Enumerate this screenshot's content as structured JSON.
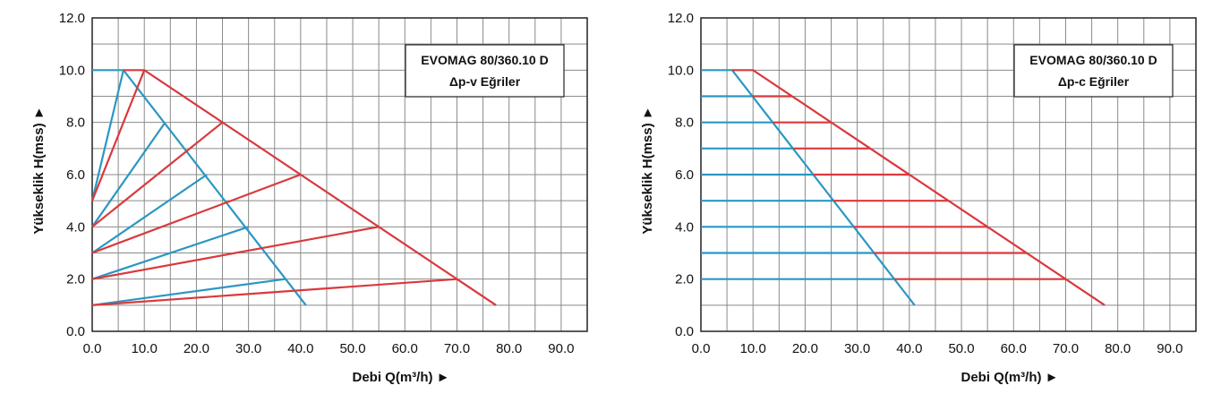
{
  "colors": {
    "blue": "#2a97c2",
    "red": "#d9393c",
    "grid": "#8a8a8a",
    "frame": "#222222"
  },
  "charts": [
    {
      "id": "left",
      "chart_data": {
        "type": "line",
        "title": "EVOMAG 80/360.10 D",
        "subtitle": "Δp-v Eğriler",
        "xlabel": "Debi Q(m³/h) ►",
        "ylabel": "Yükseklik H(mss) ►",
        "xlim": [
          0,
          95
        ],
        "ylim": [
          0,
          12
        ],
        "x_ticks": [
          "0.0",
          "10.0",
          "20.0",
          "30.0",
          "40.0",
          "50.0",
          "60.0",
          "70.0",
          "80.0",
          "90.0"
        ],
        "y_ticks": [
          "0.0",
          "2.0",
          "4.0",
          "6.0",
          "8.0",
          "10.0",
          "12.0"
        ],
        "grid": true,
        "series": [
          {
            "color": "blue",
            "points": [
              [
                0,
                1
              ],
              [
                37,
                2
              ]
            ]
          },
          {
            "color": "blue",
            "points": [
              [
                0,
                2
              ],
              [
                30,
                4
              ]
            ]
          },
          {
            "color": "blue",
            "points": [
              [
                0,
                3
              ],
              [
                22,
                6
              ]
            ]
          },
          {
            "color": "blue",
            "points": [
              [
                0,
                4
              ],
              [
                14,
                8
              ]
            ]
          },
          {
            "color": "blue",
            "points": [
              [
                0,
                5
              ],
              [
                6,
                10
              ]
            ]
          },
          {
            "color": "blue",
            "points": [
              [
                0,
                10
              ],
              [
                6,
                10
              ],
              [
                41,
                1
              ]
            ]
          },
          {
            "color": "red",
            "points": [
              [
                0,
                1
              ],
              [
                70,
                2
              ]
            ]
          },
          {
            "color": "red",
            "points": [
              [
                0,
                2
              ],
              [
                55,
                4
              ]
            ]
          },
          {
            "color": "red",
            "points": [
              [
                0,
                3
              ],
              [
                40,
                6
              ]
            ]
          },
          {
            "color": "red",
            "points": [
              [
                0,
                4
              ],
              [
                25,
                8
              ]
            ]
          },
          {
            "color": "red",
            "points": [
              [
                0,
                5
              ],
              [
                10,
                10
              ]
            ]
          },
          {
            "color": "red",
            "points": [
              [
                6,
                10
              ],
              [
                10,
                10
              ],
              [
                77.5,
                1
              ]
            ]
          }
        ]
      }
    },
    {
      "id": "right",
      "chart_data": {
        "type": "line",
        "title": "EVOMAG 80/360.10 D",
        "subtitle": "Δp-c Eğriler",
        "xlabel": "Debi Q(m³/h) ►",
        "ylabel": "Yükseklik H(mss) ►",
        "xlim": [
          0,
          95
        ],
        "ylim": [
          0,
          12
        ],
        "x_ticks": [
          "0.0",
          "10.0",
          "20.0",
          "30.0",
          "40.0",
          "50.0",
          "60.0",
          "70.0",
          "80.0",
          "90.0"
        ],
        "y_ticks": [
          "0.0",
          "2.0",
          "4.0",
          "6.0",
          "8.0",
          "10.0",
          "12.0"
        ],
        "grid": true,
        "series": [
          {
            "color": "blue",
            "points": [
              [
                0,
                10
              ],
              [
                6,
                10
              ],
              [
                41,
                1
              ]
            ]
          },
          {
            "color": "blue",
            "points": [
              [
                0,
                9
              ],
              [
                9.9,
                9
              ]
            ]
          },
          {
            "color": "blue",
            "points": [
              [
                0,
                8
              ],
              [
                13.8,
                8
              ]
            ]
          },
          {
            "color": "blue",
            "points": [
              [
                0,
                7
              ],
              [
                17.7,
                7
              ]
            ]
          },
          {
            "color": "blue",
            "points": [
              [
                0,
                6
              ],
              [
                21.6,
                6
              ]
            ]
          },
          {
            "color": "blue",
            "points": [
              [
                0,
                5
              ],
              [
                25.4,
                5
              ]
            ]
          },
          {
            "color": "blue",
            "points": [
              [
                0,
                4
              ],
              [
                29.3,
                4
              ]
            ]
          },
          {
            "color": "blue",
            "points": [
              [
                0,
                3
              ],
              [
                33.2,
                3
              ]
            ]
          },
          {
            "color": "blue",
            "points": [
              [
                0,
                2
              ],
              [
                37.1,
                2
              ]
            ]
          },
          {
            "color": "red",
            "points": [
              [
                6,
                10
              ],
              [
                10,
                10
              ],
              [
                77.5,
                1
              ]
            ]
          },
          {
            "color": "red",
            "points": [
              [
                9.9,
                9
              ],
              [
                17.5,
                9
              ]
            ]
          },
          {
            "color": "red",
            "points": [
              [
                13.8,
                8
              ],
              [
                25,
                8
              ]
            ]
          },
          {
            "color": "red",
            "points": [
              [
                17.7,
                7
              ],
              [
                32.5,
                7
              ]
            ]
          },
          {
            "color": "red",
            "points": [
              [
                21.6,
                6
              ],
              [
                40,
                6
              ]
            ]
          },
          {
            "color": "red",
            "points": [
              [
                25.4,
                5
              ],
              [
                47.5,
                5
              ]
            ]
          },
          {
            "color": "red",
            "points": [
              [
                29.3,
                4
              ],
              [
                55,
                4
              ]
            ]
          },
          {
            "color": "red",
            "points": [
              [
                33.2,
                3
              ],
              [
                62.5,
                3
              ]
            ]
          },
          {
            "color": "red",
            "points": [
              [
                37.1,
                2
              ],
              [
                70,
                2
              ]
            ]
          }
        ]
      }
    }
  ]
}
